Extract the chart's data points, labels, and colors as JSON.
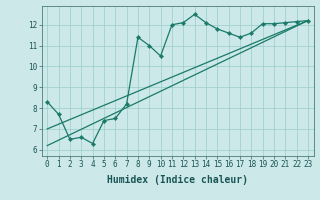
{
  "xlabel": "Humidex (Indice chaleur)",
  "bg_color": "#cce8e8",
  "line_color": "#1a7a6a",
  "grid_color": "#99cccc",
  "curve_x": [
    0,
    1,
    2,
    3,
    4,
    5,
    6,
    7,
    8,
    9,
    10,
    11,
    12,
    13,
    14,
    15,
    16,
    17,
    18,
    19,
    20,
    21,
    22,
    23
  ],
  "curve_y": [
    8.3,
    7.7,
    6.5,
    6.6,
    6.3,
    7.4,
    7.5,
    8.2,
    11.4,
    11.0,
    10.5,
    12.0,
    12.1,
    12.5,
    12.1,
    11.8,
    11.6,
    11.4,
    11.6,
    12.05,
    12.05,
    12.1,
    12.15,
    12.2
  ],
  "line1_x": [
    0,
    23
  ],
  "line1_y": [
    7.0,
    12.2
  ],
  "line2_x": [
    0,
    23
  ],
  "line2_y": [
    6.2,
    12.2
  ],
  "xlim": [
    -0.5,
    23.5
  ],
  "ylim": [
    5.7,
    12.9
  ],
  "xticks": [
    0,
    1,
    2,
    3,
    4,
    5,
    6,
    7,
    8,
    9,
    10,
    11,
    12,
    13,
    14,
    15,
    16,
    17,
    18,
    19,
    20,
    21,
    22,
    23
  ],
  "yticks": [
    6,
    7,
    8,
    9,
    10,
    11,
    12
  ],
  "tick_fontsize": 5.5,
  "label_fontsize": 7,
  "spine_color": "#336666"
}
